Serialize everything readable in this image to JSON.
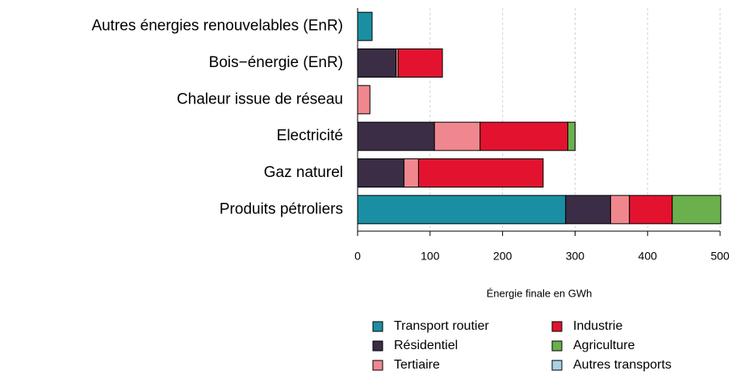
{
  "chart_data": {
    "type": "stacked_barh",
    "categories": [
      "Autres énergies renouvelables (EnR)",
      "Bois−énergie (EnR)",
      "Chaleur issue de réseau",
      "Electricité",
      "Gaz naturel",
      "Produits pétroliers"
    ],
    "series": [
      {
        "name": "Transport routier",
        "color": "#1a8fa3",
        "values": [
          20,
          0,
          0,
          0,
          0,
          287
        ]
      },
      {
        "name": "Résidentiel",
        "color": "#3a2d45",
        "values": [
          0,
          53,
          0,
          106,
          64,
          62
        ]
      },
      {
        "name": "Tertiaire",
        "color": "#f0878f",
        "values": [
          0,
          3,
          17,
          63,
          20,
          26
        ]
      },
      {
        "name": "Industrie",
        "color": "#e3132f",
        "values": [
          0,
          61,
          0,
          121,
          172,
          59
        ]
      },
      {
        "name": "Agriculture",
        "color": "#6ab04c",
        "values": [
          0,
          0,
          0,
          10,
          0,
          67
        ]
      },
      {
        "name": "Autres transports",
        "color": "#a9d3e5",
        "values": [
          0,
          0,
          0,
          0,
          0,
          0
        ]
      }
    ],
    "xlabel": "Énergie finale en GWh",
    "xlim": [
      0,
      515
    ],
    "xticks": [
      0,
      100,
      200,
      300,
      400,
      500
    ],
    "grid": true
  }
}
